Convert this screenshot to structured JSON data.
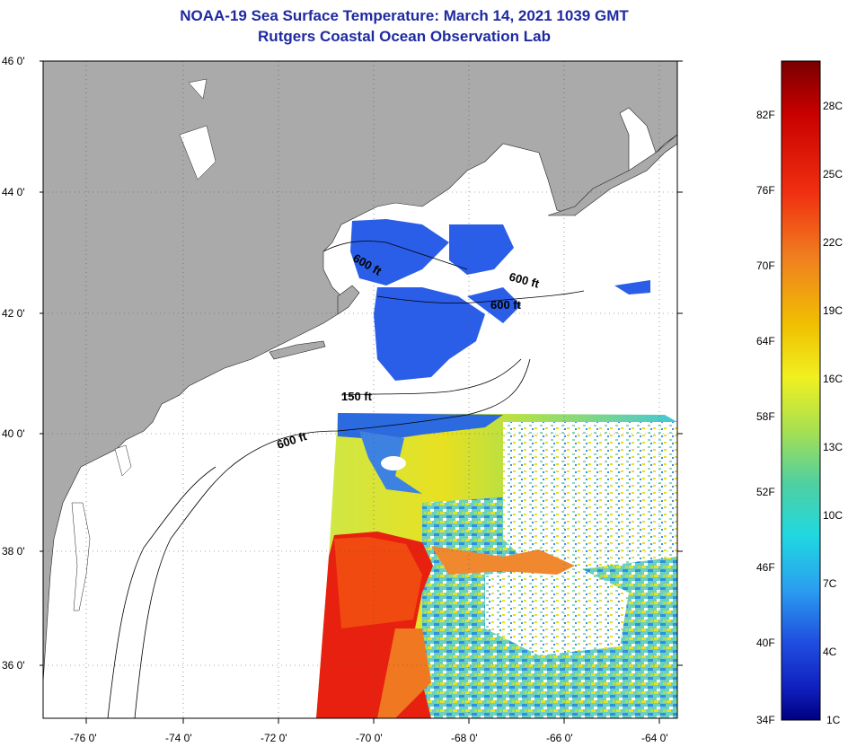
{
  "header": {
    "title": "NOAA-19 Sea Surface Temperature:  March 14, 2021 1039 GMT",
    "subtitle": "Rutgers Coastal Ocean Observation Lab"
  },
  "map": {
    "lon_ticks": [
      "-76 0'",
      "-74 0'",
      "-72 0'",
      "-70 0'",
      "-68 0'",
      "-66 0'",
      "-64 0'"
    ],
    "lat_ticks": [
      "46 0'",
      "44 0'",
      "42 0'",
      "40 0'",
      "38 0'",
      "36 0'"
    ],
    "contour_labels": [
      "600 ft",
      "600 ft",
      "600 ft",
      "150 ft",
      "600 ft"
    ],
    "colors": {
      "land": "#aaaaaa",
      "cloud": "#ffffff",
      "cold": "#2255dd",
      "warm": "#e82010",
      "mid": "#e8e020"
    }
  },
  "colorbar": {
    "fahrenheit": [
      "82F",
      "76F",
      "70F",
      "64F",
      "58F",
      "52F",
      "46F",
      "40F",
      "34F"
    ],
    "celsius": [
      "28C",
      "25C",
      "22C",
      "19C",
      "16C",
      "13C",
      "10C",
      "7C",
      "4C",
      "1C"
    ]
  }
}
